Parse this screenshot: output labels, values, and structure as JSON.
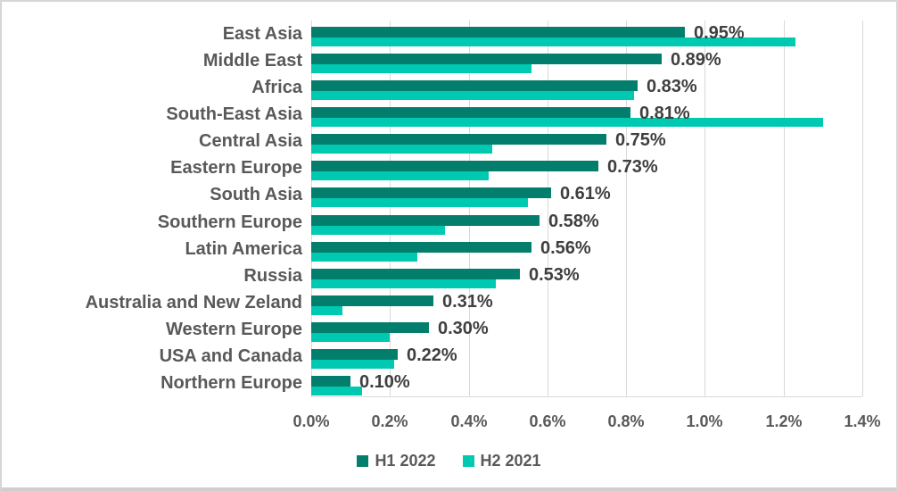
{
  "chart_data": {
    "type": "bar",
    "orientation": "horizontal",
    "categories": [
      "East Asia",
      "Middle East",
      "Africa",
      "South-East Asia",
      "Central Asia",
      "Eastern Europe",
      "South Asia",
      "Southern Europe",
      "Latin America",
      "Russia",
      "Australia and New Zeland",
      "Western Europe",
      "USA and Canada",
      "Northern Europe"
    ],
    "series": [
      {
        "name": "H1 2022",
        "color": "#047e6c",
        "values": [
          0.95,
          0.89,
          0.83,
          0.81,
          0.75,
          0.73,
          0.61,
          0.58,
          0.56,
          0.53,
          0.31,
          0.3,
          0.22,
          0.1
        ],
        "data_labels": [
          "0.95%",
          "0.89%",
          "0.83%",
          "0.81%",
          "0.75%",
          "0.73%",
          "0.61%",
          "0.58%",
          "0.56%",
          "0.53%",
          "0.31%",
          "0.30%",
          "0.22%",
          "0.10%"
        ],
        "show_data_labels": true
      },
      {
        "name": "H2 2021",
        "color": "#00c9b1",
        "values": [
          1.23,
          0.56,
          0.82,
          1.3,
          0.46,
          0.45,
          0.55,
          0.34,
          0.27,
          0.47,
          0.08,
          0.2,
          0.21,
          0.13
        ],
        "show_data_labels": false
      }
    ],
    "x_axis": {
      "min": 0,
      "max": 1.4,
      "tick_step": 0.2,
      "tick_labels": [
        "0.0%",
        "0.2%",
        "0.4%",
        "0.6%",
        "0.8%",
        "1.0%",
        "1.2%",
        "1.4%"
      ]
    },
    "legend": {
      "position": "bottom",
      "items": [
        {
          "label": "H1 2022",
          "color": "#047e6c"
        },
        {
          "label": "H2 2021",
          "color": "#00c9b1"
        }
      ]
    },
    "grid": true,
    "colors": {
      "gridline": "#d9d9d9",
      "category_text": "#595959",
      "tick_text": "#595959",
      "data_label_text": "#3f3f3f",
      "frame_border": "#d6d6d6"
    }
  }
}
